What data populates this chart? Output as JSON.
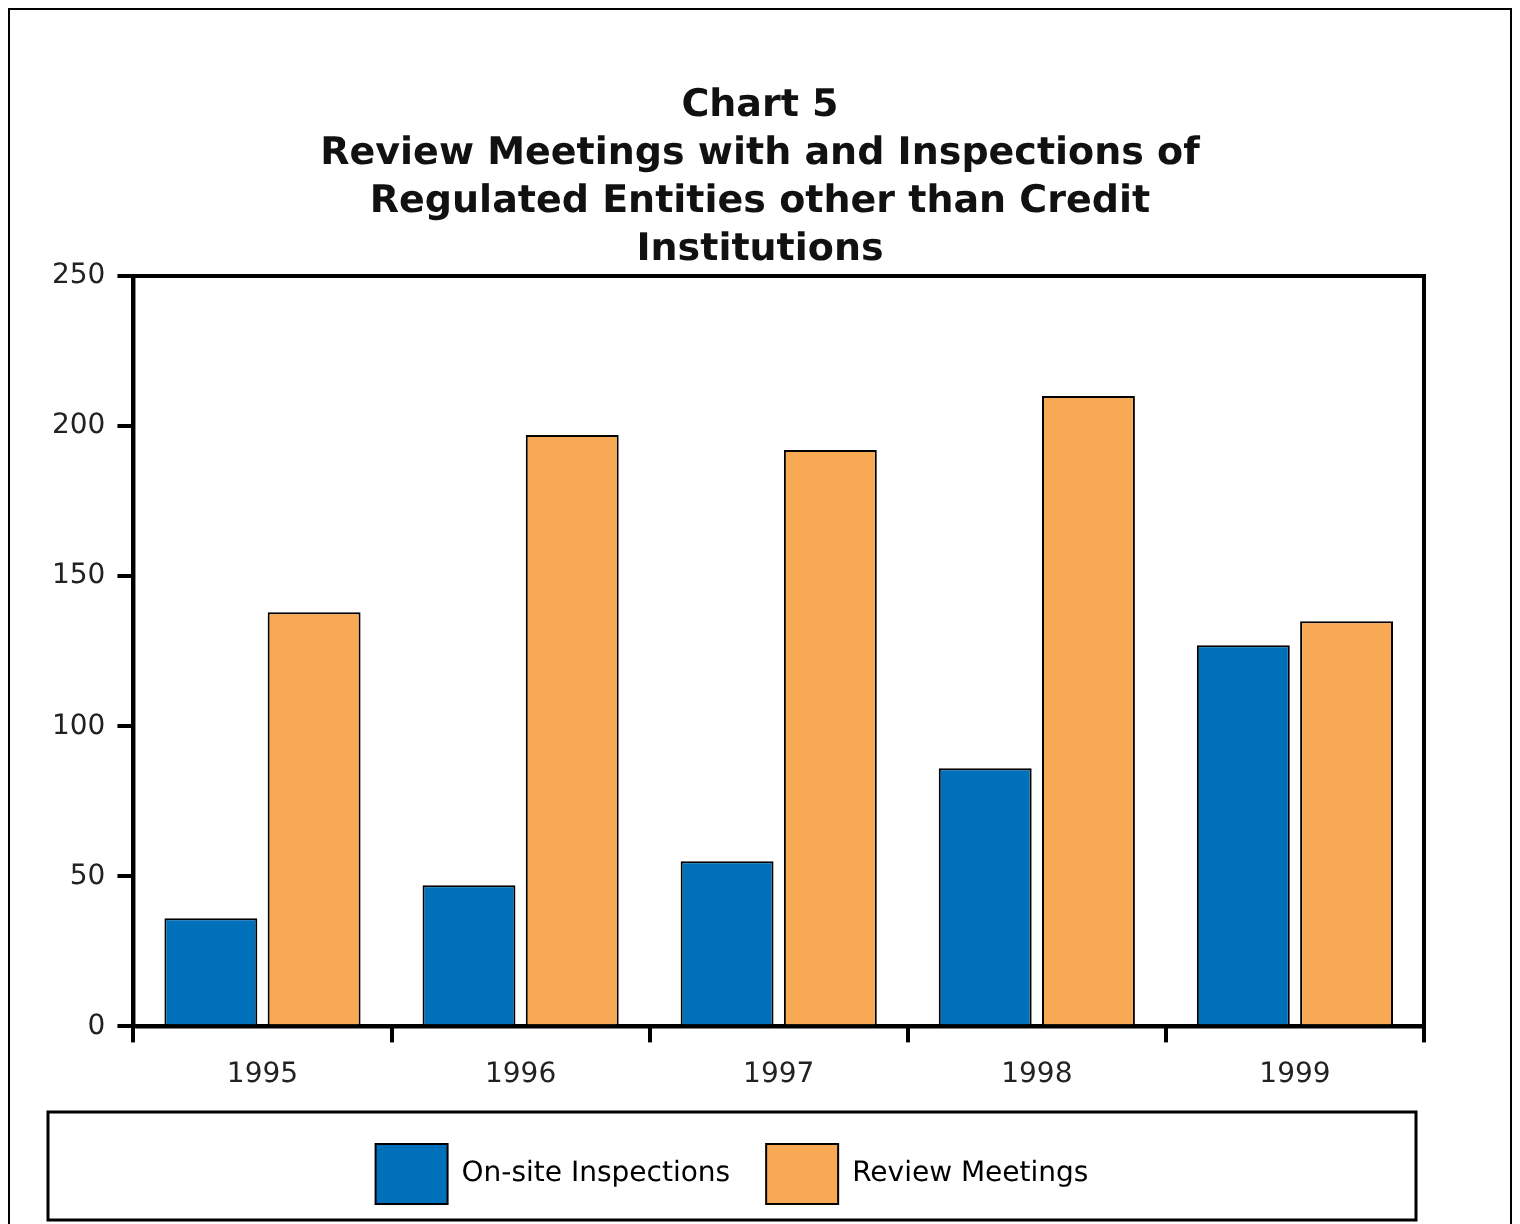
{
  "chart_data": {
    "type": "bar",
    "title": "Chart 5",
    "subtitle": "Review Meetings with and Inspections of Regulated Entities other than Credit Institutions",
    "categories": [
      "1995",
      "1996",
      "1997",
      "1998",
      "1999"
    ],
    "series": [
      {
        "name": "On-site Inspections",
        "color": "#0070bb",
        "values": [
          36,
          47,
          55,
          86,
          127
        ]
      },
      {
        "name": "Review Meetings",
        "color": "#f8a953",
        "values": [
          138,
          197,
          192,
          210,
          135
        ]
      }
    ],
    "ylim": [
      0,
      250
    ],
    "yticks": [
      0,
      50,
      100,
      150,
      200,
      250
    ],
    "grid": false,
    "legend": "bottom"
  }
}
